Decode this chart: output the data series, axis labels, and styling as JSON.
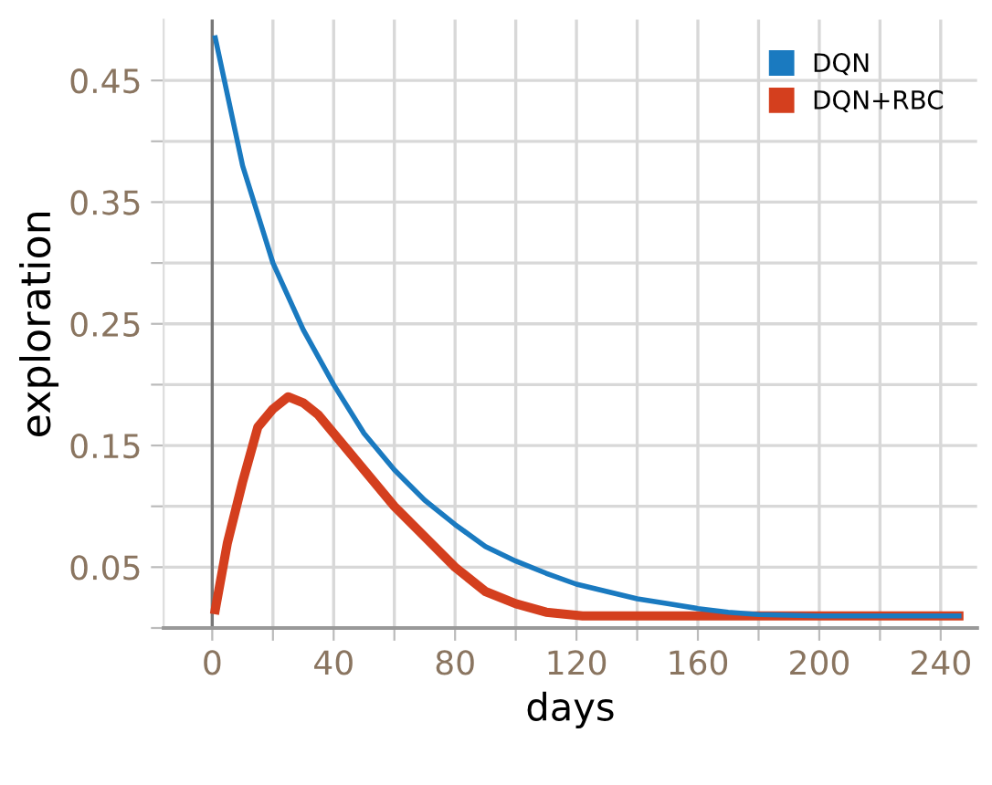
{
  "chart_data": {
    "type": "line",
    "xlabel": "days",
    "ylabel": "exploration",
    "xlim": [
      -16,
      252
    ],
    "ylim": [
      0,
      0.5
    ],
    "xticks": [
      0,
      {
        "value": 20,
        "label": null
      },
      40,
      {
        "value": 60,
        "label": null
      },
      80,
      {
        "value": 100,
        "label": null
      },
      120,
      {
        "value": 140,
        "label": null
      },
      160,
      {
        "value": 180,
        "label": null
      },
      200,
      {
        "value": 220,
        "label": null
      },
      240
    ],
    "yticks": [
      {
        "value": 0,
        "label": null
      },
      0.05,
      {
        "value": 0.1,
        "label": null
      },
      0.15,
      {
        "value": 0.2,
        "label": null
      },
      0.25,
      {
        "value": 0.3,
        "label": null
      },
      0.35,
      {
        "value": 0.4,
        "label": null
      },
      0.45
    ],
    "grid": true,
    "legend": "top right",
    "marker": "none",
    "line_style": "solid",
    "ref_lines": [
      {
        "axis": "x",
        "value": 0,
        "color": "#777777"
      }
    ],
    "series": [
      {
        "name": "DQN",
        "color": "#1a7ac0",
        "x": [
          1,
          10,
          20,
          30,
          40,
          50,
          60,
          70,
          80,
          90,
          100,
          110,
          120,
          130,
          140,
          150,
          160,
          170,
          180,
          200,
          246
        ],
        "values": [
          0.485,
          0.38,
          0.3,
          0.245,
          0.2,
          0.16,
          0.13,
          0.105,
          0.085,
          0.067,
          0.055,
          0.045,
          0.036,
          0.03,
          0.024,
          0.02,
          0.016,
          0.013,
          0.011,
          0.01,
          0.01
        ]
      },
      {
        "name": "DQN+RBC",
        "color": "#d43f1e",
        "x": [
          1,
          5,
          10,
          15,
          20,
          25,
          30,
          35,
          40,
          50,
          60,
          70,
          80,
          90,
          100,
          110,
          122,
          246
        ],
        "values": [
          0.015,
          0.07,
          0.12,
          0.165,
          0.18,
          0.19,
          0.185,
          0.175,
          0.16,
          0.13,
          0.1,
          0.075,
          0.05,
          0.03,
          0.02,
          0.013,
          0.01,
          0.01
        ]
      }
    ]
  }
}
